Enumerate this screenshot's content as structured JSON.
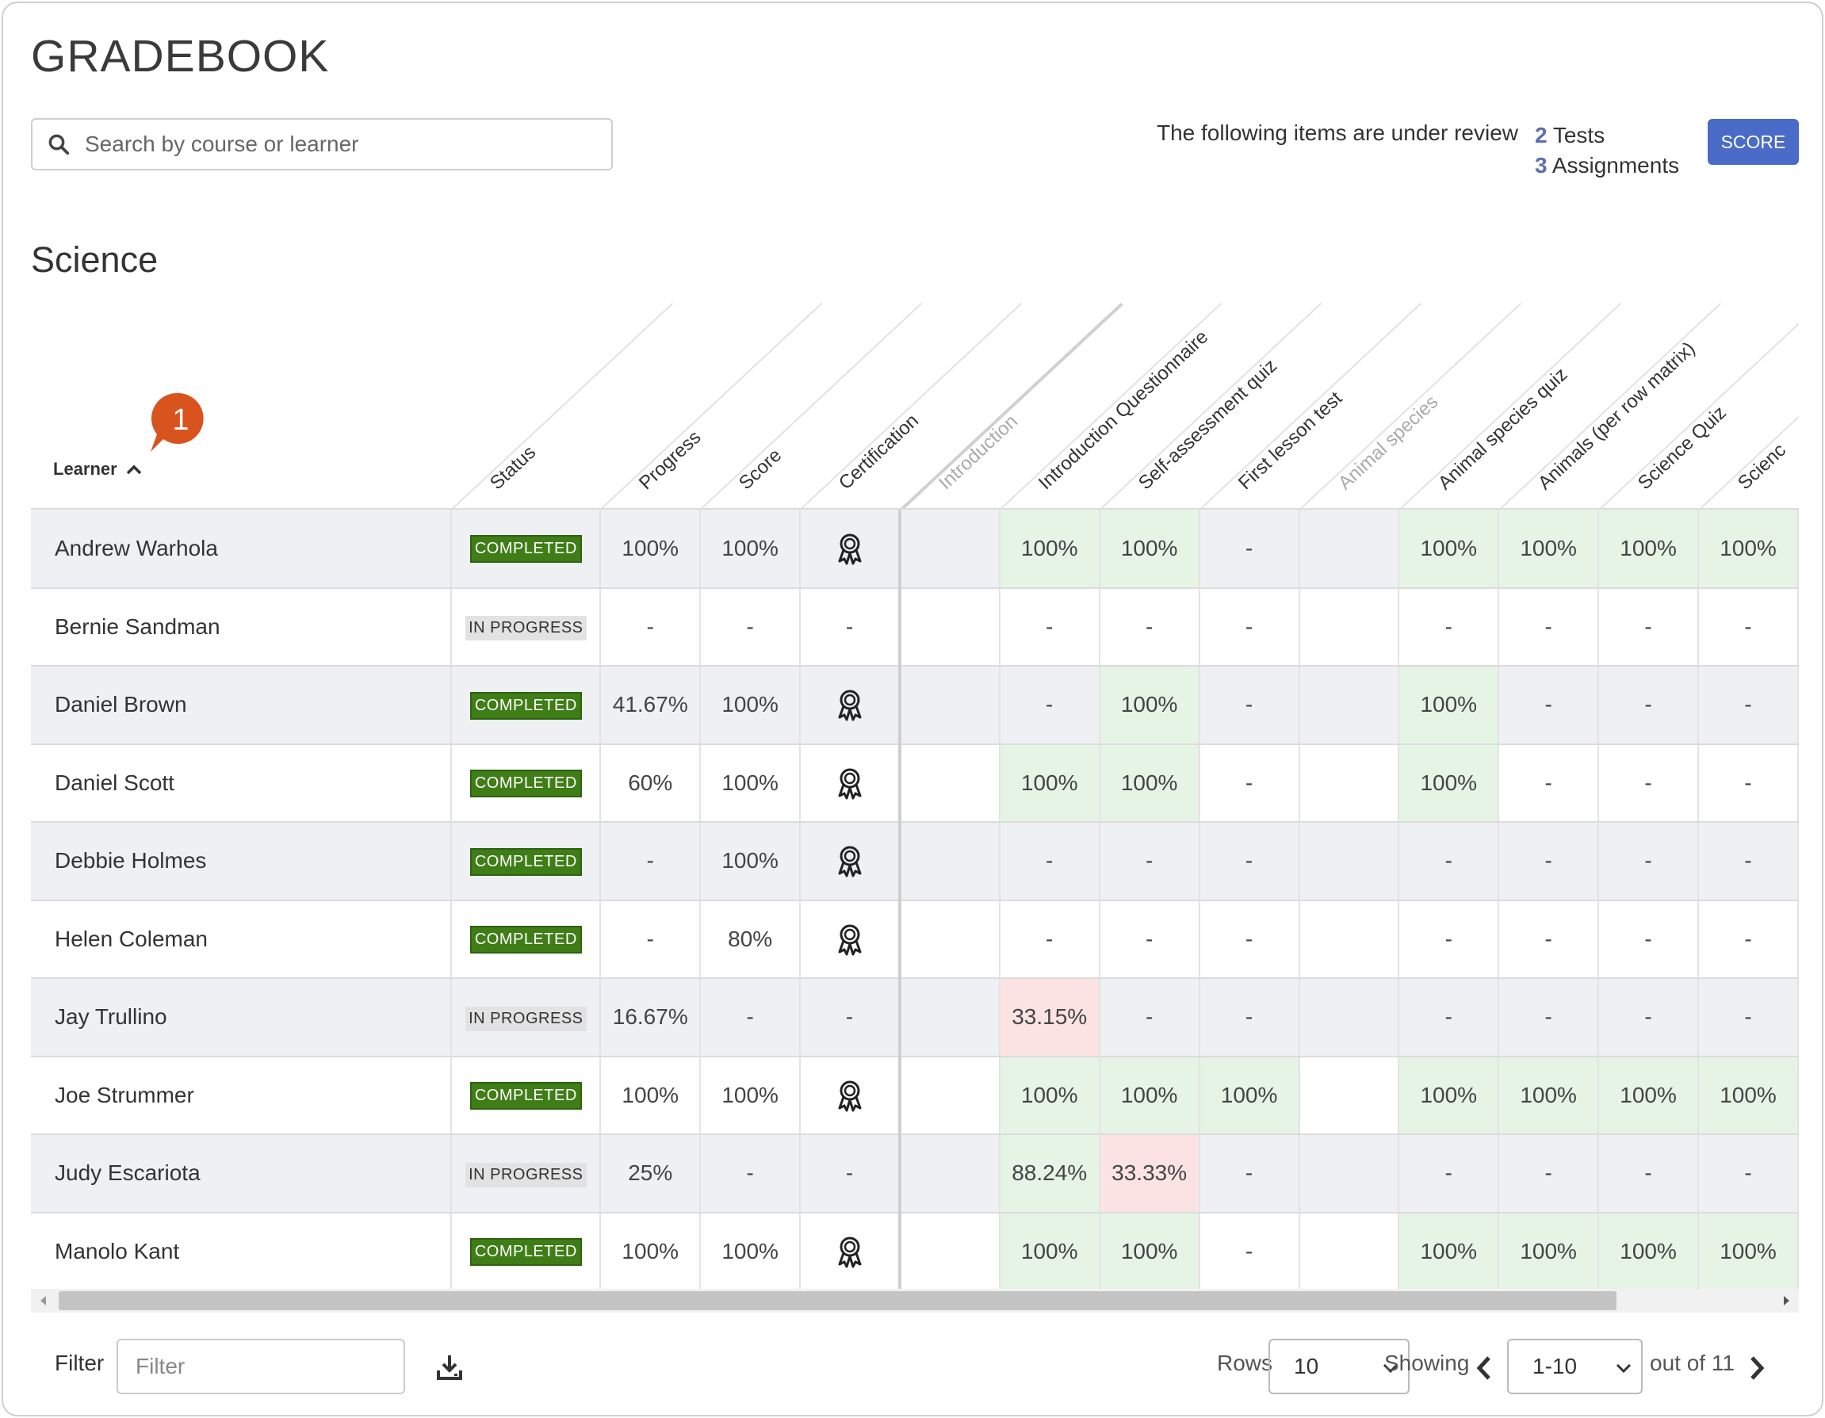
{
  "page": {
    "title": "GRADEBOOK"
  },
  "search": {
    "placeholder": "Search by course or learner"
  },
  "review": {
    "text": "The following items are under review",
    "items": [
      {
        "count": "2",
        "label": "Tests"
      },
      {
        "count": "3",
        "label": "Assignments"
      }
    ],
    "score_button": "SCORE"
  },
  "section": {
    "title": "Science"
  },
  "annotation": {
    "number": "1"
  },
  "columns": {
    "learner": "Learner",
    "headers": [
      "Status",
      "Progress",
      "Score",
      "Certification",
      "Introduction",
      "Introduction Questionnaire",
      "Self-assessment quiz",
      "First lesson test",
      "Animal species",
      "Animal species quiz",
      "Animals (per row matrix)",
      "Science Quiz",
      "Scienc"
    ]
  },
  "status_labels": {
    "completed": "COMPLETED",
    "in_progress": "IN PROGRESS"
  },
  "rows": [
    {
      "name": "Andrew Warhola",
      "status": "COMPLETED",
      "progress": "100%",
      "score": "100%",
      "cert": true,
      "cells": [
        "100%",
        "100%",
        "-",
        "100%",
        "100%",
        "100%",
        "100%"
      ]
    },
    {
      "name": "Bernie Sandman",
      "status": "IN PROGRESS",
      "progress": "-",
      "score": "-",
      "cert": false,
      "cells": [
        "-",
        "-",
        "-",
        "-",
        "-",
        "-",
        "-"
      ]
    },
    {
      "name": "Daniel Brown",
      "status": "COMPLETED",
      "progress": "41.67%",
      "score": "100%",
      "cert": true,
      "cells": [
        "-",
        "100%",
        "-",
        "100%",
        "-",
        "-",
        "-"
      ]
    },
    {
      "name": "Daniel Scott",
      "status": "COMPLETED",
      "progress": "60%",
      "score": "100%",
      "cert": true,
      "cells": [
        "100%",
        "100%",
        "-",
        "100%",
        "-",
        "-",
        "-"
      ]
    },
    {
      "name": "Debbie Holmes",
      "status": "COMPLETED",
      "progress": "-",
      "score": "100%",
      "cert": true,
      "cells": [
        "-",
        "-",
        "-",
        "-",
        "-",
        "-",
        "-"
      ]
    },
    {
      "name": "Helen Coleman",
      "status": "COMPLETED",
      "progress": "-",
      "score": "80%",
      "cert": true,
      "cells": [
        "-",
        "-",
        "-",
        "-",
        "-",
        "-",
        "-"
      ]
    },
    {
      "name": "Jay Trullino",
      "status": "IN PROGRESS",
      "progress": "16.67%",
      "score": "-",
      "cert": false,
      "cells": [
        "33.15%",
        "-",
        "-",
        "-",
        "-",
        "-",
        "-"
      ]
    },
    {
      "name": "Joe Strummer",
      "status": "COMPLETED",
      "progress": "100%",
      "score": "100%",
      "cert": true,
      "cells": [
        "100%",
        "100%",
        "100%",
        "100%",
        "100%",
        "100%",
        "100%"
      ]
    },
    {
      "name": "Judy Escariota",
      "status": "IN PROGRESS",
      "progress": "25%",
      "score": "-",
      "cert": false,
      "cells": [
        "88.24%",
        "33.33%",
        "-",
        "-",
        "-",
        "-",
        "-"
      ]
    },
    {
      "name": "Manolo Kant",
      "status": "COMPLETED",
      "progress": "100%",
      "score": "100%",
      "cert": true,
      "cells": [
        "100%",
        "100%",
        "-",
        "100%",
        "100%",
        "100%",
        "100%"
      ]
    }
  ],
  "footer": {
    "filter_label": "Filter",
    "filter_placeholder": "Filter",
    "rows_label": "Rows",
    "rows_value": "10",
    "showing_label": "Showing",
    "page_range": "1-10",
    "out_of": "out of 11"
  },
  "colors": {
    "accent": "#4a6bc8",
    "completed": "#3f7d16",
    "pass": "#e6f4e6",
    "fail": "#fbe3e3",
    "marker": "#d9531e"
  }
}
